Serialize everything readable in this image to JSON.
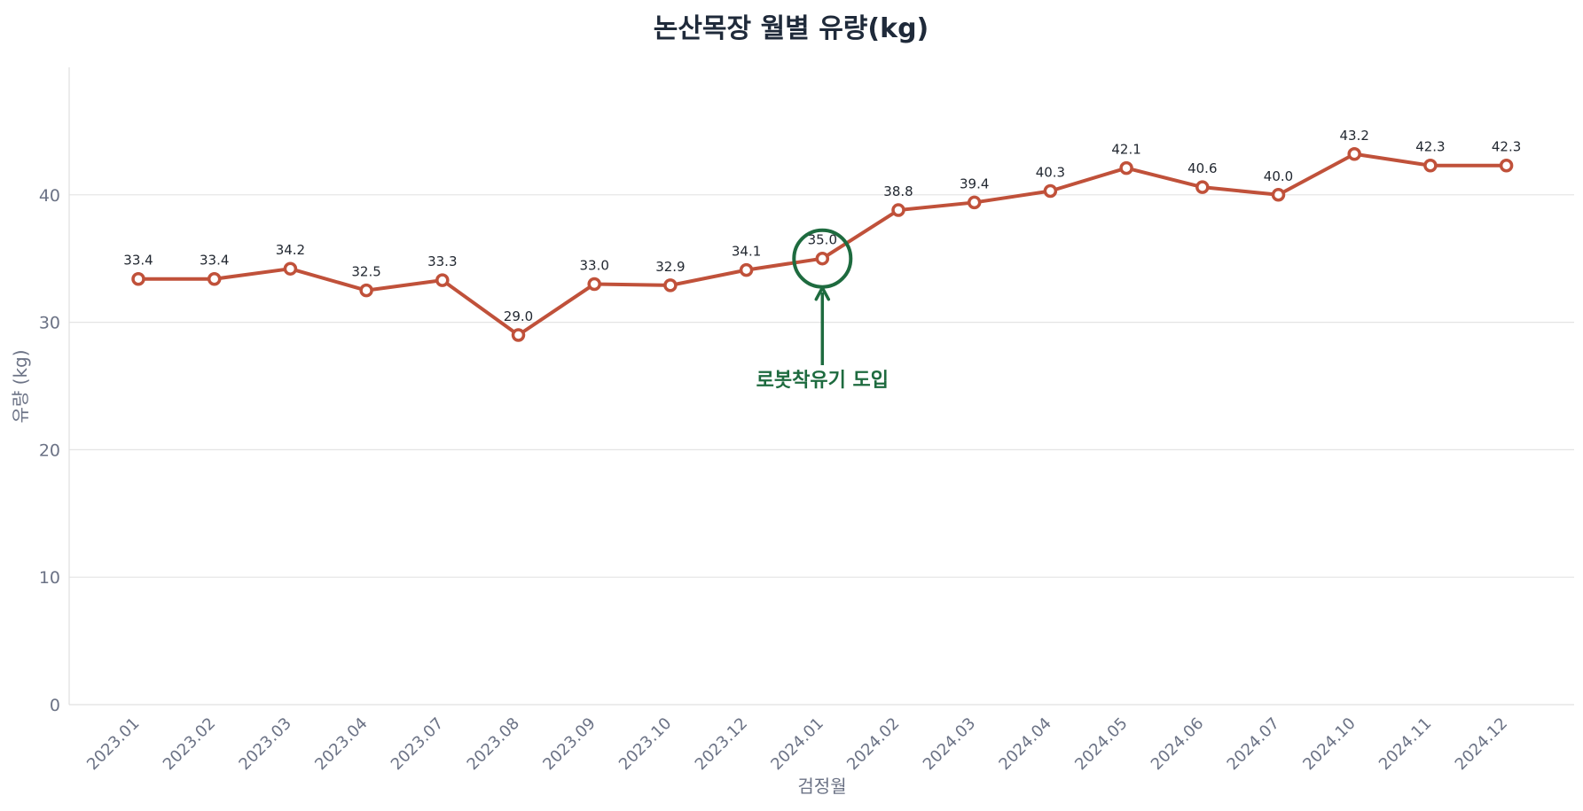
{
  "chart_data": {
    "type": "line",
    "title": "논산목장 월별 유량(kg)",
    "xlabel": "검정월",
    "ylabel": "유량 (kg)",
    "ylim": [
      0,
      50
    ],
    "yticks": [
      0,
      10,
      20,
      30,
      40
    ],
    "grid": true,
    "categories": [
      "2023.01",
      "2023.02",
      "2023.03",
      "2023.04",
      "2023.07",
      "2023.08",
      "2023.09",
      "2023.10",
      "2023.12",
      "2024.01",
      "2024.02",
      "2024.03",
      "2024.04",
      "2024.05",
      "2024.06",
      "2024.07",
      "2024.10",
      "2024.11",
      "2024.12"
    ],
    "series": [
      {
        "values": [
          33.4,
          33.4,
          34.2,
          32.5,
          33.3,
          29.0,
          33.0,
          32.9,
          34.1,
          35.0,
          38.8,
          39.4,
          40.3,
          42.1,
          40.6,
          40.0,
          43.2,
          42.3,
          42.3
        ],
        "labels": [
          "33.4",
          "33.4",
          "34.2",
          "32.5",
          "33.3",
          "29.0",
          "33.0",
          "32.9",
          "34.1",
          "35.0",
          "38.8",
          "39.4",
          "40.3",
          "42.1",
          "40.6",
          "40.0",
          "43.2",
          "42.3",
          "42.3"
        ],
        "color": "#c0513a"
      }
    ],
    "annotations": [
      {
        "text": "로봇착유기 도입",
        "category": "2024.01",
        "value": 35.0,
        "color": "#1e6b3f"
      }
    ]
  }
}
